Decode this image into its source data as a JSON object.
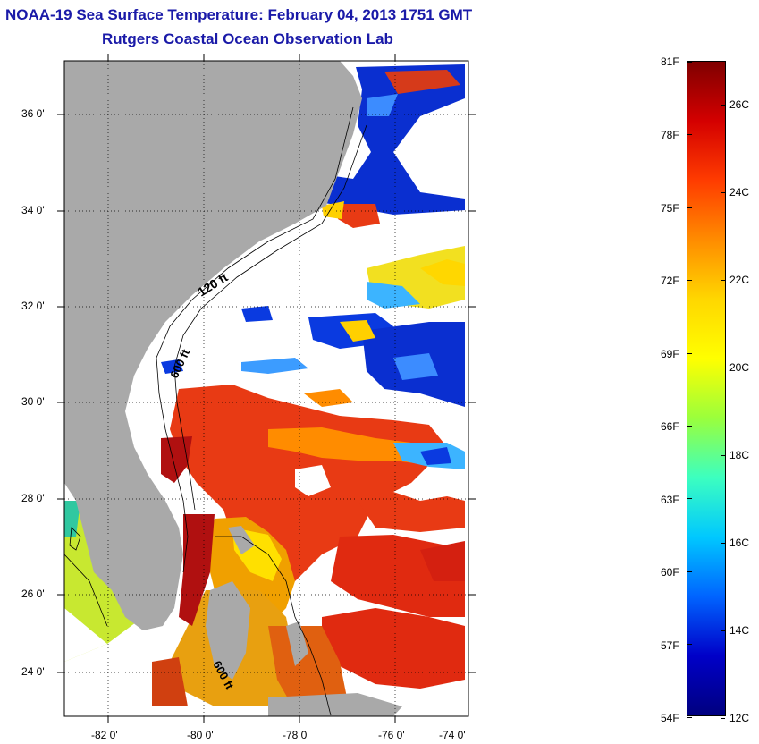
{
  "title": {
    "line1": "NOAA-19 Sea Surface Temperature:  February 04, 2013 1751 GMT",
    "line2": "Rutgers Coastal Ocean Observation Lab"
  },
  "map": {
    "lat_labels": [
      "36 0'",
      "34 0'",
      "32 0'",
      "30 0'",
      "28 0'",
      "26 0'",
      "24 0'"
    ],
    "lon_labels": [
      "-82 0'",
      "-80 0'",
      "-78 0'",
      "-76 0'",
      "-74 0'"
    ],
    "contours": [
      "120 ft",
      "600 ft",
      "600 ft"
    ],
    "colors": {
      "land": "#a9a9a9",
      "cloud": "#ffffff",
      "frame": "#000000"
    }
  },
  "colorbar": {
    "fahrenheit_labels": [
      "81F",
      "78F",
      "75F",
      "72F",
      "69F",
      "66F",
      "63F",
      "60F",
      "57F",
      "54F"
    ],
    "celsius_labels": [
      "26C",
      "24C",
      "22C",
      "20C",
      "18C",
      "16C",
      "14C",
      "12C"
    ],
    "colormap": [
      "#7f0000",
      "#d40000",
      "#ff3c00",
      "#ff8c00",
      "#ffd700",
      "#ffff00",
      "#9aff3c",
      "#3cffc0",
      "#00c8ff",
      "#0064ff",
      "#0000c8",
      "#00007f"
    ]
  }
}
